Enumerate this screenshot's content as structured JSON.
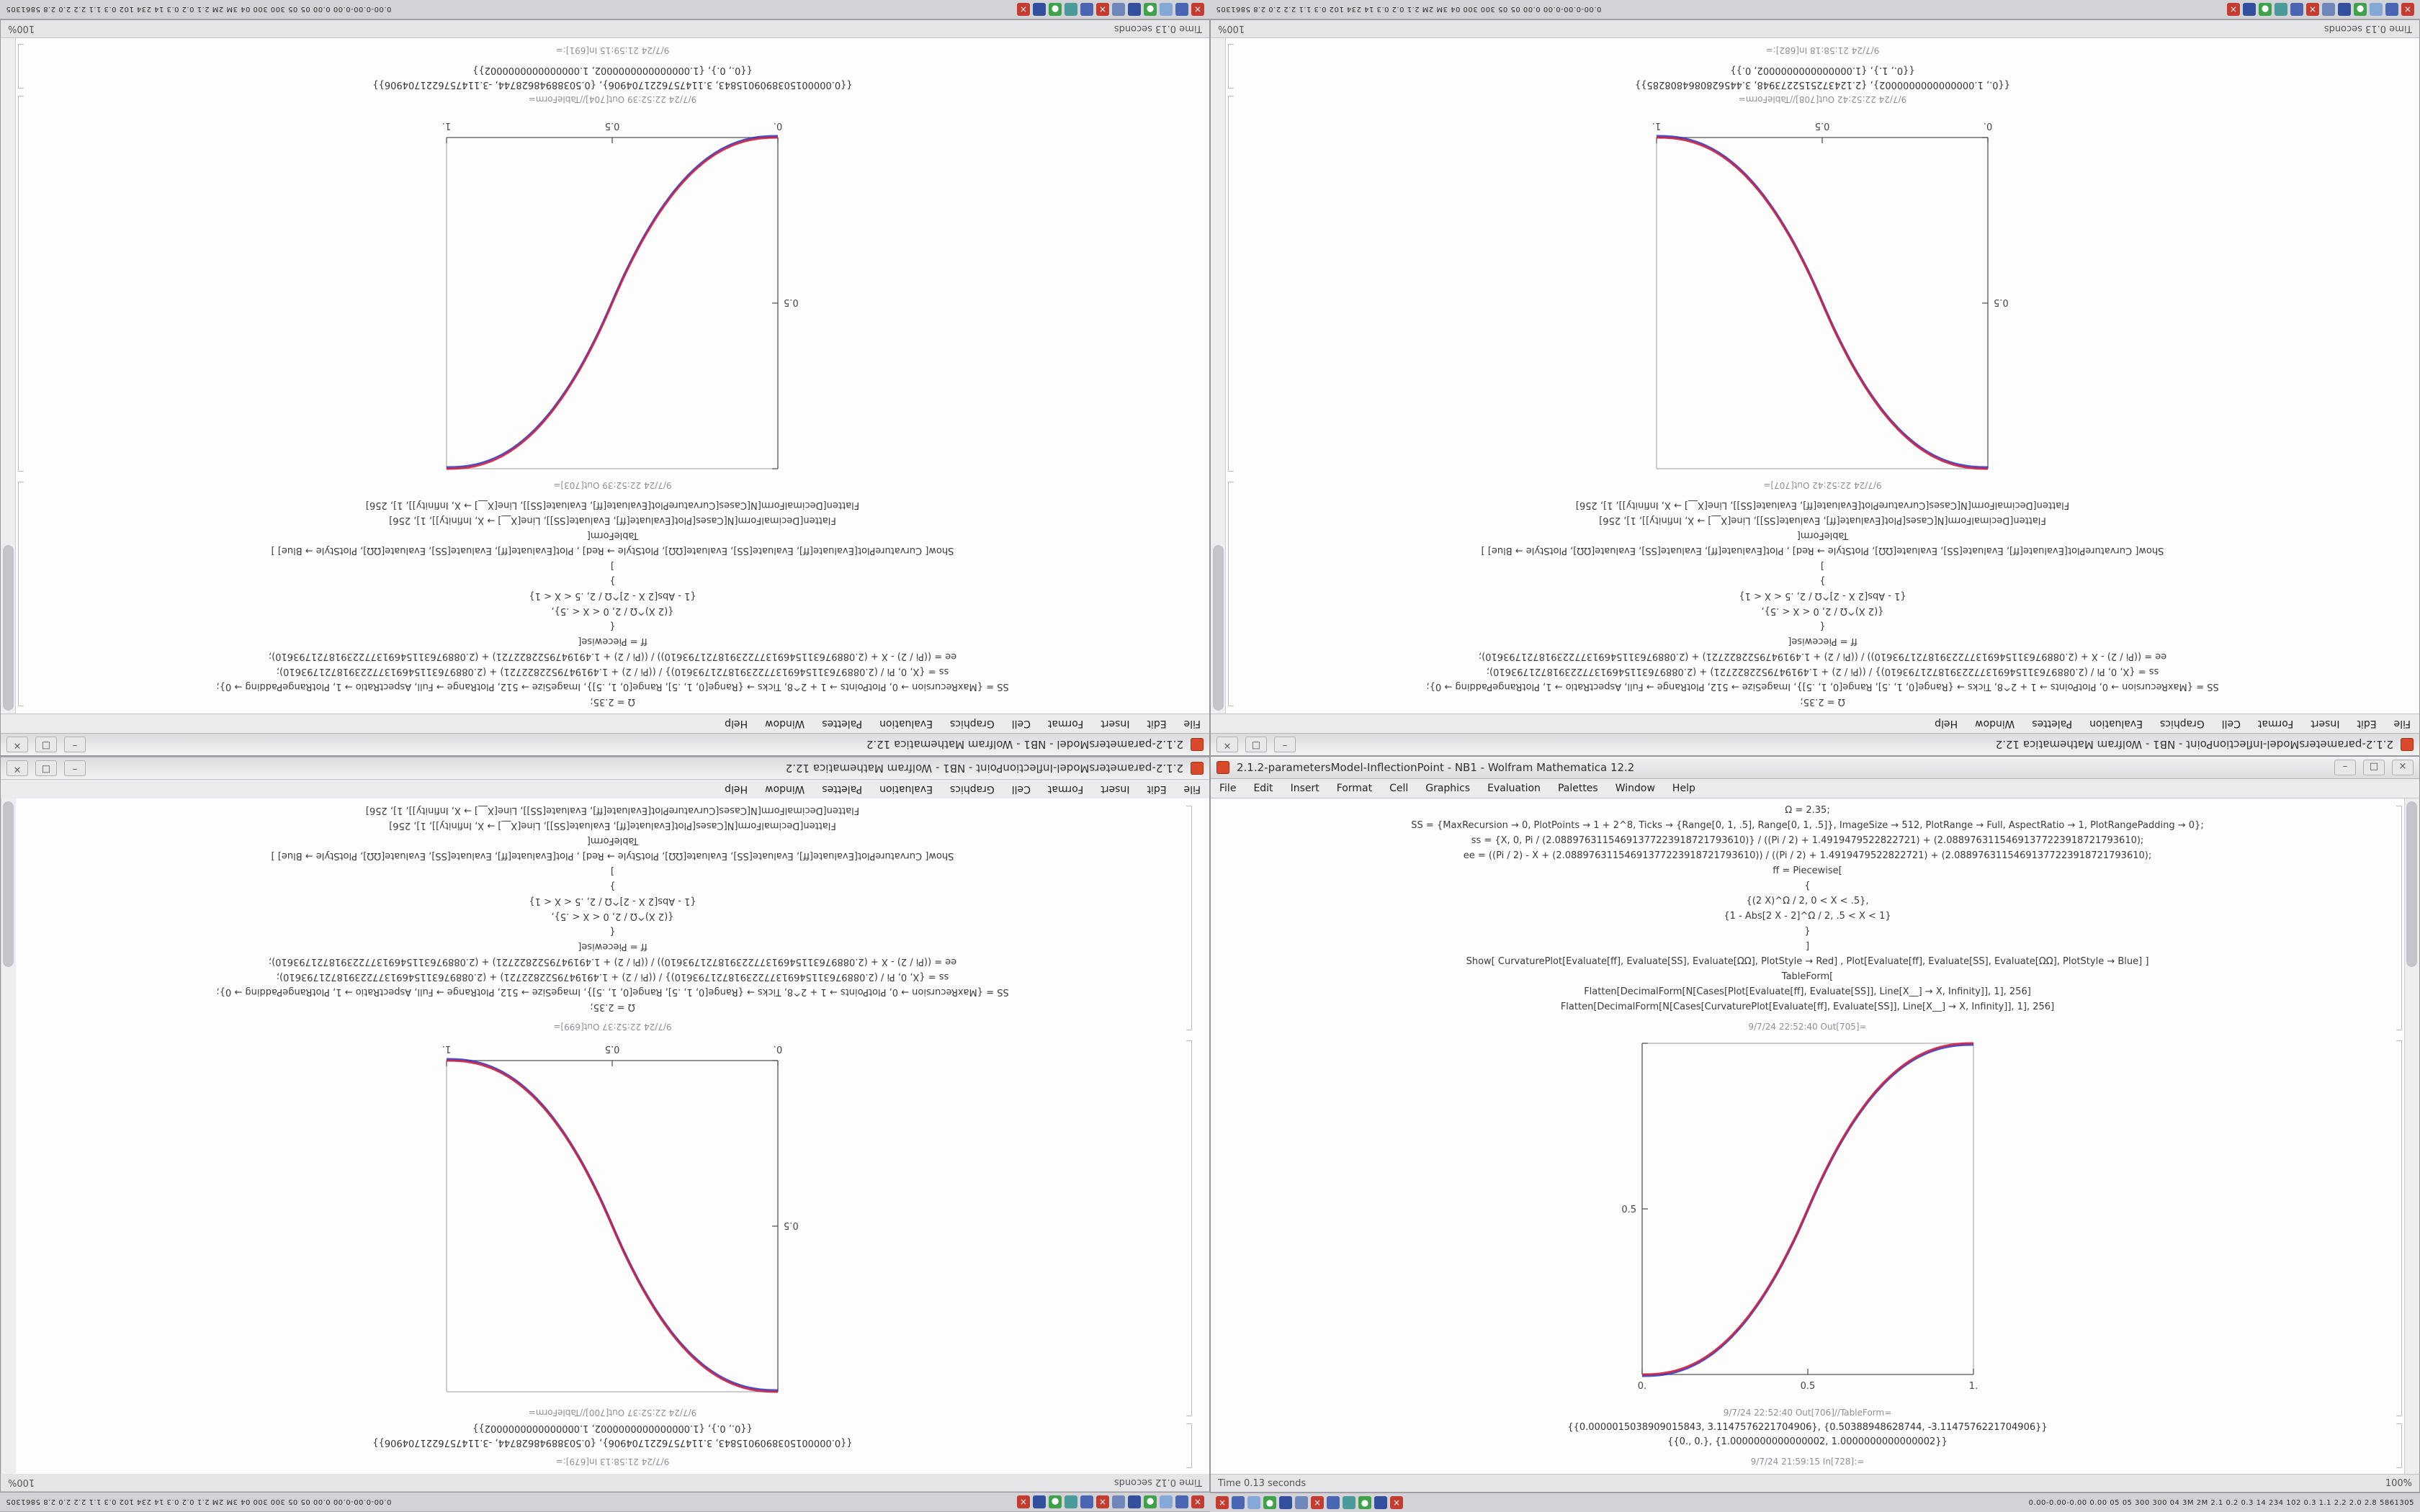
{
  "app": {
    "name": "Wolfram Mathematica",
    "version": "12.2"
  },
  "menu": {
    "items": [
      "File",
      "Edit",
      "Insert",
      "Format",
      "Cell",
      "Graphics",
      "Evaluation",
      "Palettes",
      "Window",
      "Help"
    ]
  },
  "window_controls": {
    "minimize": "–",
    "maximize": "□",
    "close": "×"
  },
  "code_lines": [
    "Ω = 2.35;",
    "SS = {MaxRecursion → 0, PlotPoints → 1 + 2^8, Ticks → {Range[0, 1, .5], Range[0, 1, .5]}, ImageSize → 512, PlotRange → Full, AspectRatio → 1, PlotRangePadding → 0};",
    "ss = {X, 0, Pi / (2.08897631154691377223918721793610)} / ((Pi / 2) + 1.4919479522822721) + (2.08897631154691377223918721793610);",
    "ee = ((Pi / 2) - X + (2.08897631154691377223918721793610)) / ((Pi / 2) + 1.4919479522822721) + (2.08897631154691377223918721793610);",
    "ff = Piecewise[",
    "{",
    "{(2 X)^Ω / 2, 0 < X < .5},",
    "{1 - Abs[2 X - 2]^Ω / 2, .5 < X < 1}",
    "}",
    "]",
    "Show[  CurvaturePlot[Evaluate[ff], Evaluate[SS], Evaluate[ΩΩ], PlotStyle → Red]  ,  Plot[Evaluate[ff], Evaluate[SS], Evaluate[ΩΩ], PlotStyle → Blue]  ]",
    "TableForm[",
    "Flatten[DecimalForm[N[Cases[Plot[Evaluate[ff], Evaluate[SS]], Line[X__] → X, Infinity]], 1], 256]",
    "Flatten[DecimalForm[N[Cases[CurvaturePlot[Evaluate[ff], Evaluate[SS]], Line[X__] → X, Infinity]], 1], 256]"
  ],
  "taskbar": {
    "stats": "0.00-0.00-0.00 0.00 05 05 300 300 04 3M 2M 2.1 0.2 0.3 14 234 102 0.3 1.1 2.2 2.0 2.8 5861305",
    "icons": [
      {
        "name": "tray-close-red",
        "color": "#c43b2f",
        "glyph": "×"
      },
      {
        "name": "tray-app-blue",
        "color": "#4a66b2",
        "glyph": ""
      },
      {
        "name": "tray-app-lightblue",
        "color": "#86a8d8",
        "glyph": ""
      },
      {
        "name": "tray-app-green",
        "color": "#3fa24b",
        "glyph": "●"
      },
      {
        "name": "tray-app-navy",
        "color": "#33509e",
        "glyph": ""
      },
      {
        "name": "tray-app-slate",
        "color": "#6f86b8",
        "glyph": ""
      },
      {
        "name": "tray-close-red-2",
        "color": "#c43b2f",
        "glyph": "×"
      },
      {
        "name": "tray-app-blue-2",
        "color": "#4a66b2",
        "glyph": ""
      },
      {
        "name": "tray-app-teal",
        "color": "#4a9a9a",
        "glyph": ""
      },
      {
        "name": "tray-app-green-2",
        "color": "#3fa24b",
        "glyph": "●"
      },
      {
        "name": "tray-app-navy-2",
        "color": "#33509e",
        "glyph": ""
      },
      {
        "name": "tray-close-red-3",
        "color": "#c43b2f",
        "glyph": "×"
      }
    ]
  },
  "windows": [
    {
      "id": "top-left",
      "orientation": "rotated-180",
      "title": "2.1.2-parametersModel - NB1 - Wolfram Mathematica 12.2",
      "status": {
        "time": "Time 0.13 seconds",
        "zoom": "100%"
      },
      "cells": {
        "out_plot_label": "9/7/24 22:52:39 Out[703]=",
        "out_table_label": "9/7/24 22:52:39 Out[704]//TableForm=",
        "in_label": "9/7/24 21:59:15 In[691]:=",
        "output_rows": [
          "{{0.0000015038909015843, 3.1147576221704906}, {0.50388948628744, -3.1147576221704906}}",
          "{{0., 0.}, {1.0000000000000002, 1.0000000000000002}}"
        ]
      },
      "chart_data": {
        "type": "line",
        "direction": "ascending",
        "exponent": 2.35,
        "xlim": [
          0,
          1
        ],
        "ylim": [
          0,
          1
        ],
        "xtick_labels": [
          "0.",
          "0.5",
          "1."
        ],
        "ytick_label": "0.5",
        "x": [
          0,
          0.1,
          0.2,
          0.3,
          0.4,
          0.5,
          0.6,
          0.7,
          0.8,
          0.9,
          1
        ],
        "y": [
          0,
          0.0114,
          0.058,
          0.1506,
          0.296,
          0.5,
          0.704,
          0.8494,
          0.942,
          0.9886,
          1
        ],
        "series": [
          {
            "name": "CurvaturePlot",
            "style": "Red",
            "color": "#cc2244"
          },
          {
            "name": "Plot",
            "style": "Blue",
            "color": "#2233cc"
          }
        ]
      }
    },
    {
      "id": "top-right",
      "orientation": "rotated-180",
      "title": "2.1.2-parametersModel-InflectionPoint - NB1 - Wolfram Mathematica 12.2",
      "status": {
        "time": "Time 0.13 seconds",
        "zoom": "100%"
      },
      "cells": {
        "out_plot_label": "9/7/24 22:52:42 Out[707]=",
        "out_table_label": "9/7/24 22:52:42 Out[708]//TableForm=",
        "in_label": "9/7/24 21:58:18 In[682]:=",
        "output_rows": [
          "{{0., 1.0000000000000002}, {2.1243725152273948, 3.4456280864808285}}",
          "{{0., 1.}, {1.0000000000000002, 0.}}"
        ]
      },
      "chart_data": {
        "type": "line",
        "direction": "descending",
        "exponent": 2.35,
        "xlim": [
          0,
          1
        ],
        "ylim": [
          0,
          1
        ],
        "xtick_labels": [
          "0.",
          "0.5",
          "1."
        ],
        "ytick_label": "0.5",
        "x": [
          0,
          0.1,
          0.2,
          0.3,
          0.4,
          0.5,
          0.6,
          0.7,
          0.8,
          0.9,
          1
        ],
        "y": [
          1,
          0.9886,
          0.942,
          0.8494,
          0.704,
          0.5,
          0.296,
          0.1506,
          0.058,
          0.0114,
          0
        ],
        "series": [
          {
            "name": "CurvaturePlot",
            "style": "Red",
            "color": "#cc2244"
          },
          {
            "name": "Plot",
            "style": "Blue",
            "color": "#2233cc"
          }
        ]
      }
    },
    {
      "id": "bottom-left",
      "orientation": "cells-rotated-180",
      "title": "2.1.2-parametersModel-InflectionPoint - NB1 - Wolfram Mathematica 12.2",
      "status": {
        "time": "Time 0.12 seconds",
        "zoom": "100%"
      },
      "cells": {
        "out_plot_label": "9/7/24 22:52:37 Out[699]=",
        "out_table_label": "9/7/24 22:52:37 Out[700]//TableForm=",
        "in_label": "9/7/24 21:58:13 In[679]:=",
        "output_rows": [
          "{{0.0000015038909015843, 3.1147576221704906}, {0.50388948628744, -3.1147576221704906}}",
          "{{0., 0.}, {1.0000000000000002, 1.0000000000000002}}"
        ]
      },
      "chart_data": {
        "type": "line",
        "direction": "descending",
        "exponent": 2.35,
        "xlim": [
          0,
          1
        ],
        "ylim": [
          0,
          1
        ],
        "xtick_labels": [
          "0.",
          "0.5",
          "1."
        ],
        "ytick_label": "0.5",
        "x": [
          0,
          0.1,
          0.2,
          0.3,
          0.4,
          0.5,
          0.6,
          0.7,
          0.8,
          0.9,
          1
        ],
        "y": [
          1,
          0.9886,
          0.942,
          0.8494,
          0.704,
          0.5,
          0.296,
          0.1506,
          0.058,
          0.0114,
          0
        ],
        "series": [
          {
            "name": "CurvaturePlot",
            "style": "Red",
            "color": "#cc2244"
          },
          {
            "name": "Plot",
            "style": "Blue",
            "color": "#2233cc"
          }
        ]
      }
    },
    {
      "id": "bottom-right",
      "orientation": "normal",
      "title": "2.1.2-parametersModel-InflectionPoint - NB1 - Wolfram Mathematica 12.2",
      "status": {
        "time": "Time 0.13 seconds",
        "zoom": "100%"
      },
      "cells": {
        "out_plot_label": "9/7/24 22:52:40 Out[705]=",
        "out_table_label": "9/7/24 22:52:40 Out[706]//TableForm=",
        "in_label": "9/7/24 21:59:15 In[728]:=",
        "output_rows": [
          "{{0.0000015038909015843, 3.1147576221704906}, {0.50388948628744, -3.1147576221704906}}",
          "{{0., 0.}, {1.0000000000000002, 1.0000000000000002}}"
        ]
      },
      "chart_data": {
        "type": "line",
        "direction": "ascending",
        "exponent": 2.35,
        "xlim": [
          0,
          1
        ],
        "ylim": [
          0,
          1
        ],
        "xtick_labels": [
          "0.",
          "0.5",
          "1."
        ],
        "ytick_label": "0.5",
        "x": [
          0,
          0.1,
          0.2,
          0.3,
          0.4,
          0.5,
          0.6,
          0.7,
          0.8,
          0.9,
          1
        ],
        "y": [
          0,
          0.0114,
          0.058,
          0.1506,
          0.296,
          0.5,
          0.704,
          0.8494,
          0.942,
          0.9886,
          1
        ],
        "series": [
          {
            "name": "CurvaturePlot",
            "style": "Red",
            "color": "#cc2244"
          },
          {
            "name": "Plot",
            "style": "Blue",
            "color": "#2233cc"
          }
        ]
      }
    }
  ]
}
